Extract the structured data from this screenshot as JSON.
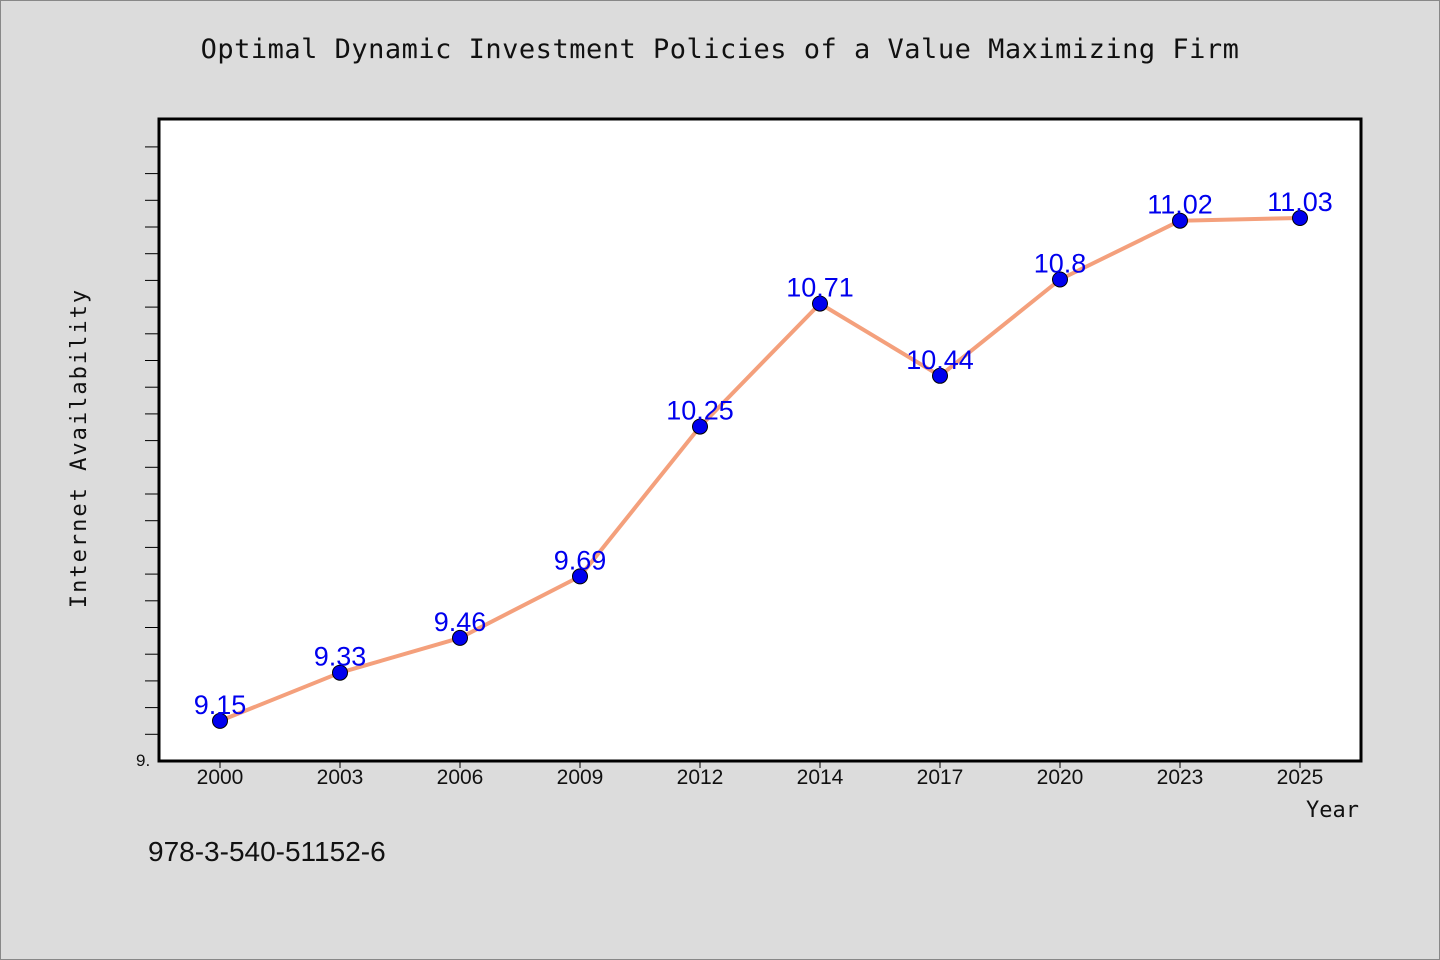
{
  "chart_data": {
    "type": "line",
    "title": "Optimal Dynamic Investment Policies of a Value Maximizing Firm",
    "xlabel": "Year",
    "ylabel": "Internet Availability",
    "categories": [
      "2000",
      "2003",
      "2006",
      "2009",
      "2012",
      "2014",
      "2017",
      "2020",
      "2023",
      "2025"
    ],
    "series": [
      {
        "values": [
          9.15,
          9.33,
          9.46,
          9.69,
          10.25,
          10.71,
          10.44,
          10.8,
          11.02,
          11.03
        ]
      }
    ],
    "ylim": [
      9.0,
      11.4
    ],
    "y_tick_label": "9.",
    "grid": false,
    "data_labels": true,
    "line_color": "#f4a07c",
    "marker_color": "#0000ee",
    "label_color": "#0000ee"
  },
  "footer": {
    "code": "978-3-540-51152-6"
  }
}
